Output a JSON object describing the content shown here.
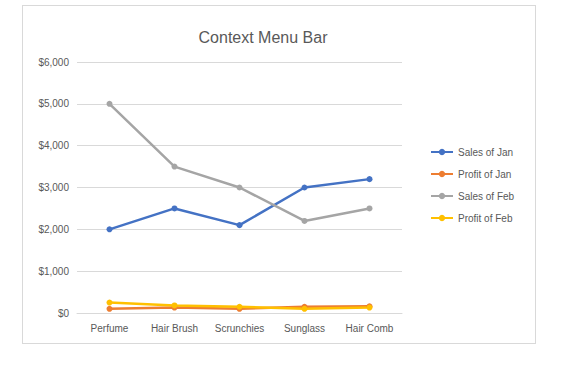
{
  "chart_data": {
    "type": "line",
    "title": "Context Menu Bar",
    "categories": [
      "Perfume",
      "Hair Brush",
      "Scrunchies",
      "Sunglass",
      "Hair Comb"
    ],
    "series": [
      {
        "name": "Sales of Jan",
        "color": "#4472c4",
        "values": [
          2000,
          2500,
          2100,
          3000,
          3200
        ]
      },
      {
        "name": "Profit of Jan",
        "color": "#ed7d31",
        "values": [
          100,
          130,
          100,
          150,
          160
        ]
      },
      {
        "name": "Sales of Feb",
        "color": "#a5a5a5",
        "values": [
          5000,
          3500,
          3000,
          2200,
          2500
        ]
      },
      {
        "name": "Profit of Feb",
        "color": "#ffc000",
        "values": [
          250,
          180,
          150,
          100,
          130
        ]
      }
    ],
    "ylim": [
      0,
      6000
    ],
    "yticks": [
      {
        "value": 0,
        "label": "$0"
      },
      {
        "value": 1000,
        "label": "$1,000"
      },
      {
        "value": 2000,
        "label": "$2,000"
      },
      {
        "value": 3000,
        "label": "$3,000"
      },
      {
        "value": 4000,
        "label": "$4,000"
      },
      {
        "value": 5000,
        "label": "$5,000"
      },
      {
        "value": 6000,
        "label": "$6,000"
      }
    ],
    "grid": true,
    "legend": "right",
    "marker": "circle"
  }
}
